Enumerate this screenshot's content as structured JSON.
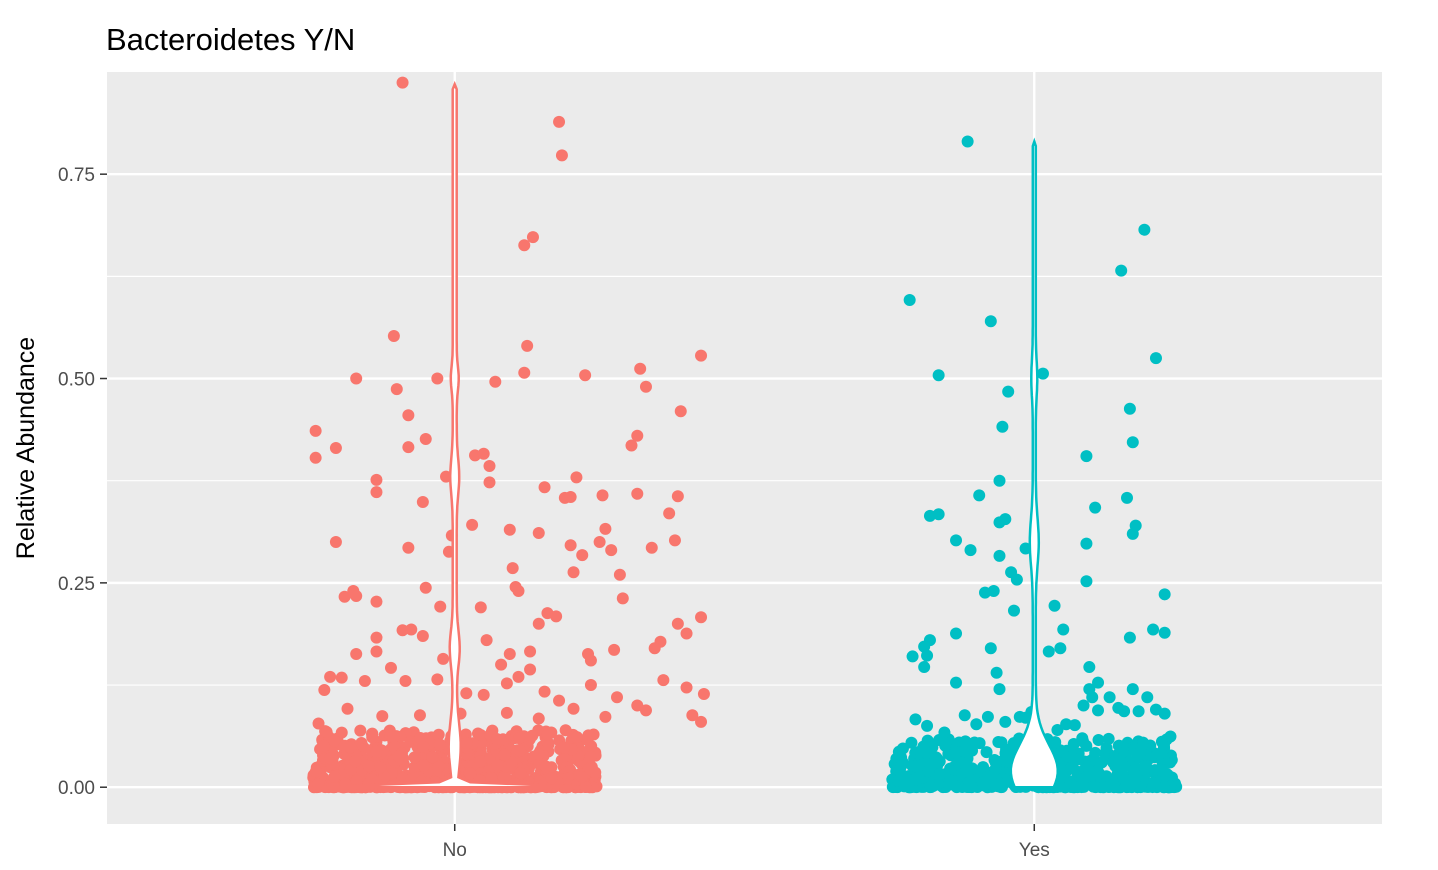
{
  "chart_data": {
    "type": "scatter",
    "subtype": "violin-with-jittered-points",
    "title": "Bacteroidetes Y/N",
    "xlabel": "",
    "ylabel": "Relative Abundance",
    "categories": [
      "No",
      "Yes"
    ],
    "ylim": [
      -0.045,
      0.875
    ],
    "yticks": [
      0.0,
      0.25,
      0.5,
      0.75
    ],
    "ytick_labels": [
      "0.00",
      "0.25",
      "0.50",
      "0.75"
    ],
    "grid": true,
    "legend": "none",
    "panel_background": "#ebebeb",
    "grid_color": "#ffffff",
    "series": [
      {
        "category": "No",
        "color": "#f8766d",
        "violin": {
          "max": 0.86,
          "mode_half_width": 0.45
        },
        "points": [
          [
            -0.48,
            0.436
          ],
          [
            -0.48,
            0.403
          ],
          [
            -0.41,
            0.415
          ],
          [
            -0.34,
            0.5
          ],
          [
            -0.21,
            0.552
          ],
          [
            -0.18,
            0.862
          ],
          [
            -0.2,
            0.487
          ],
          [
            -0.16,
            0.455
          ],
          [
            -0.16,
            0.416
          ],
          [
            -0.1,
            0.426
          ],
          [
            -0.11,
            0.349
          ],
          [
            -0.06,
            0.5
          ],
          [
            -0.03,
            0.38
          ],
          [
            0.07,
            0.406
          ],
          [
            -0.27,
            0.376
          ],
          [
            -0.27,
            0.361
          ],
          [
            -0.41,
            0.3
          ],
          [
            -0.16,
            0.293
          ],
          [
            -0.01,
            0.308
          ],
          [
            -0.02,
            0.288
          ],
          [
            -0.35,
            0.24
          ],
          [
            -0.38,
            0.233
          ],
          [
            -0.34,
            0.234
          ],
          [
            -0.27,
            0.227
          ],
          [
            -0.1,
            0.244
          ],
          [
            -0.05,
            0.221
          ],
          [
            -0.18,
            0.192
          ],
          [
            -0.15,
            0.193
          ],
          [
            -0.27,
            0.183
          ],
          [
            -0.11,
            0.185
          ],
          [
            -0.04,
            0.157
          ],
          [
            -0.34,
            0.163
          ],
          [
            -0.27,
            0.166
          ],
          [
            0.06,
            0.321
          ],
          [
            0.1,
            0.408
          ],
          [
            0.12,
            0.373
          ],
          [
            0.12,
            0.393
          ],
          [
            0.14,
            0.496
          ],
          [
            0.19,
            0.315
          ],
          [
            0.24,
            0.663
          ],
          [
            0.27,
            0.673
          ],
          [
            0.25,
            0.54
          ],
          [
            0.24,
            0.507
          ],
          [
            0.36,
            0.814
          ],
          [
            0.37,
            0.773
          ],
          [
            0.31,
            0.367
          ],
          [
            0.29,
            0.311
          ],
          [
            0.38,
            0.354
          ],
          [
            0.4,
            0.296
          ],
          [
            0.42,
            0.379
          ],
          [
            0.44,
            0.284
          ],
          [
            0.2,
            0.268
          ],
          [
            0.21,
            0.245
          ],
          [
            0.22,
            0.24
          ],
          [
            0.35,
            0.209
          ],
          [
            0.32,
            0.213
          ],
          [
            0.29,
            0.2
          ],
          [
            0.09,
            0.22
          ],
          [
            0.11,
            0.18
          ],
          [
            0.19,
            0.163
          ],
          [
            0.26,
            0.166
          ],
          [
            0.45,
            0.504
          ],
          [
            0.51,
            0.357
          ],
          [
            0.5,
            0.3
          ],
          [
            0.52,
            0.316
          ],
          [
            0.54,
            0.29
          ],
          [
            0.57,
            0.26
          ],
          [
            0.58,
            0.231
          ],
          [
            0.61,
            0.418
          ],
          [
            0.63,
            0.43
          ],
          [
            0.63,
            0.359
          ],
          [
            0.64,
            0.512
          ],
          [
            0.66,
            0.49
          ],
          [
            0.68,
            0.293
          ],
          [
            0.71,
            0.178
          ],
          [
            0.74,
            0.335
          ],
          [
            0.76,
            0.302
          ],
          [
            0.77,
            0.356
          ],
          [
            0.78,
            0.46
          ],
          [
            0.85,
            0.528
          ],
          [
            0.77,
            0.2
          ],
          [
            0.8,
            0.188
          ],
          [
            0.85,
            0.208
          ],
          [
            0.69,
            0.17
          ],
          [
            0.46,
            0.163
          ],
          [
            0.47,
            0.155
          ],
          [
            0.55,
            0.168
          ],
          [
            0.4,
            0.355
          ],
          [
            0.41,
            0.263
          ],
          [
            0.16,
            0.15
          ],
          [
            0.26,
            0.144
          ],
          [
            -0.43,
            0.135
          ],
          [
            -0.39,
            0.134
          ],
          [
            -0.31,
            0.13
          ],
          [
            -0.22,
            0.146
          ],
          [
            -0.17,
            0.13
          ],
          [
            -0.06,
            0.132
          ],
          [
            0.04,
            0.115
          ],
          [
            0.1,
            0.113
          ],
          [
            0.18,
            0.127
          ],
          [
            0.22,
            0.135
          ],
          [
            0.31,
            0.117
          ],
          [
            0.36,
            0.106
          ],
          [
            0.47,
            0.125
          ],
          [
            0.56,
            0.11
          ],
          [
            0.63,
            0.1
          ],
          [
            0.72,
            0.131
          ],
          [
            0.8,
            0.122
          ],
          [
            0.86,
            0.114
          ],
          [
            0.85,
            0.08
          ],
          [
            0.82,
            0.088
          ],
          [
            0.66,
            0.094
          ],
          [
            0.52,
            0.086
          ],
          [
            0.41,
            0.096
          ],
          [
            0.29,
            0.084
          ],
          [
            0.18,
            0.091
          ],
          [
            0.02,
            0.09
          ],
          [
            -0.12,
            0.088
          ],
          [
            -0.25,
            0.087
          ],
          [
            -0.37,
            0.096
          ],
          [
            -0.47,
            0.078
          ],
          [
            -0.45,
            0.119
          ]
        ],
        "band_max": 0.07,
        "band_density_note": "dense cluster of points near 0"
      },
      {
        "category": "Yes",
        "color": "#00bfc4",
        "violin": {
          "max": 0.79,
          "mode_half_width": 0.05
        },
        "points": [
          [
            -0.43,
            0.596
          ],
          [
            -0.33,
            0.504
          ],
          [
            -0.36,
            0.332
          ],
          [
            -0.33,
            0.334
          ],
          [
            -0.27,
            0.302
          ],
          [
            -0.27,
            0.188
          ],
          [
            -0.36,
            0.18
          ],
          [
            -0.38,
            0.172
          ],
          [
            -0.38,
            0.147
          ],
          [
            -0.37,
            0.161
          ],
          [
            -0.27,
            0.128
          ],
          [
            -0.23,
            0.79
          ],
          [
            -0.22,
            0.29
          ],
          [
            -0.19,
            0.357
          ],
          [
            -0.17,
            0.238
          ],
          [
            -0.14,
            0.24
          ],
          [
            -0.15,
            0.17
          ],
          [
            -0.12,
            0.324
          ],
          [
            -0.1,
            0.328
          ],
          [
            -0.12,
            0.283
          ],
          [
            -0.15,
            0.57
          ],
          [
            -0.11,
            0.441
          ],
          [
            -0.12,
            0.375
          ],
          [
            -0.09,
            0.484
          ],
          [
            -0.08,
            0.263
          ],
          [
            -0.07,
            0.216
          ],
          [
            -0.06,
            0.254
          ],
          [
            -0.03,
            0.292
          ],
          [
            0.03,
            0.506
          ],
          [
            0.07,
            0.222
          ],
          [
            0.05,
            0.166
          ],
          [
            0.09,
            0.17
          ],
          [
            0.1,
            0.193
          ],
          [
            0.18,
            0.405
          ],
          [
            0.18,
            0.298
          ],
          [
            0.18,
            0.252
          ],
          [
            0.21,
            0.342
          ],
          [
            0.19,
            0.147
          ],
          [
            0.19,
            0.12
          ],
          [
            0.2,
            0.11
          ],
          [
            0.22,
            0.128
          ],
          [
            0.3,
            0.632
          ],
          [
            0.33,
            0.463
          ],
          [
            0.34,
            0.422
          ],
          [
            0.32,
            0.354
          ],
          [
            0.34,
            0.31
          ],
          [
            0.35,
            0.32
          ],
          [
            0.33,
            0.183
          ],
          [
            0.38,
            0.682
          ],
          [
            0.42,
            0.525
          ],
          [
            0.45,
            0.236
          ],
          [
            0.41,
            0.193
          ],
          [
            0.45,
            0.189
          ],
          [
            -0.42,
            0.16
          ],
          [
            -0.41,
            0.083
          ],
          [
            -0.37,
            0.075
          ],
          [
            -0.31,
            0.067
          ],
          [
            -0.24,
            0.088
          ],
          [
            -0.2,
            0.077
          ],
          [
            -0.16,
            0.086
          ],
          [
            -0.13,
            0.14
          ],
          [
            -0.12,
            0.12
          ],
          [
            -0.1,
            0.08
          ],
          [
            -0.05,
            0.086
          ],
          [
            -0.03,
            0.085
          ],
          [
            -0.01,
            0.092
          ],
          [
            0.08,
            0.07
          ],
          [
            0.11,
            0.077
          ],
          [
            0.14,
            0.076
          ],
          [
            0.17,
            0.1
          ],
          [
            0.22,
            0.094
          ],
          [
            0.26,
            0.11
          ],
          [
            0.29,
            0.097
          ],
          [
            0.31,
            0.093
          ],
          [
            0.34,
            0.12
          ],
          [
            0.36,
            0.093
          ],
          [
            0.39,
            0.11
          ],
          [
            0.42,
            0.095
          ],
          [
            0.45,
            0.09
          ],
          [
            0.47,
            0.062
          ]
        ],
        "band_max": 0.06,
        "band_density_note": "dense cluster of points near 0"
      }
    ]
  }
}
